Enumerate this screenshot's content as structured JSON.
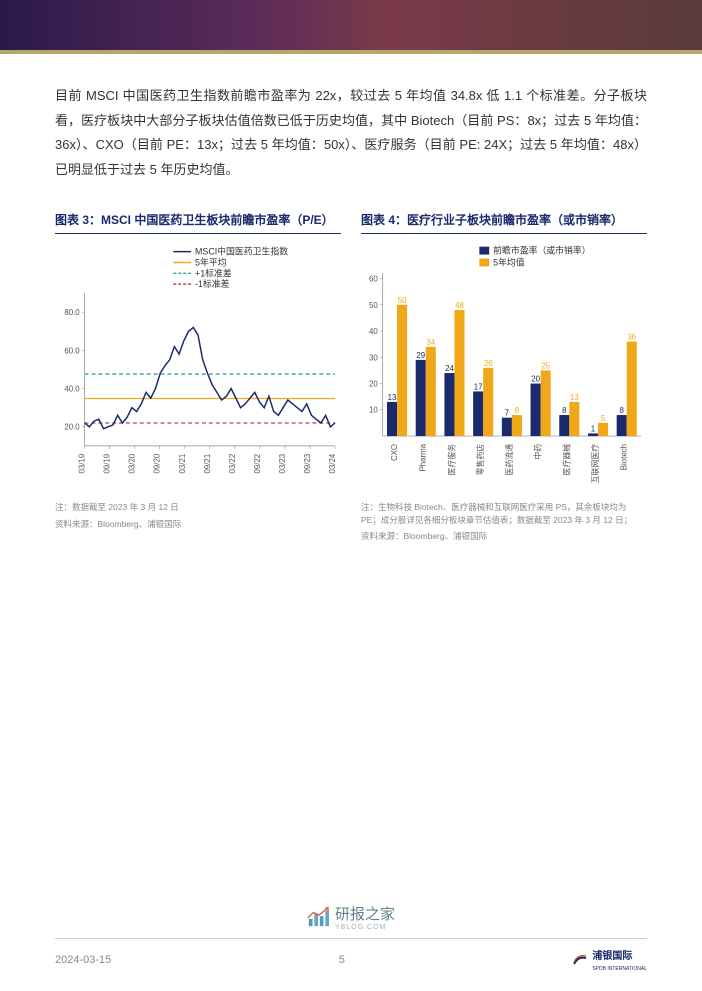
{
  "body_text": "目前 MSCI 中国医药卫生指数前瞻市盈率为 22x，较过去 5 年均值 34.8x 低 1.1 个标准差。分子板块看，医疗板块中大部分子板块估值倍数已低于历史均值，其中 Biotech（目前 PS：8x；过去 5 年均值：36x）、CXO（目前 PE：13x；过去 5 年均值：50x）、医疗服务（目前 PE: 24X；过去 5 年均值：48x）已明显低于过去 5 年历史均值。",
  "chart3": {
    "title": "图表 3：MSCI 中国医药卫生板块前瞻市盈率（P/E）",
    "type": "line",
    "legend": [
      "MSCI中国医药卫生指数",
      "5年平均",
      "+1标准差",
      "-1标准差"
    ],
    "legend_colors": [
      "#1a2a6c",
      "#f0a818",
      "#2aa89a",
      "#b54a4a"
    ],
    "legend_dashes": [
      "solid",
      "solid",
      "dashed",
      "dashed"
    ],
    "x_labels": [
      "03/19",
      "09/19",
      "03/20",
      "09/20",
      "03/21",
      "09/21",
      "03/22",
      "09/22",
      "03/23",
      "09/23",
      "03/24"
    ],
    "y_ticks": [
      20.0,
      40.0,
      60.0,
      80.0
    ],
    "ylim": [
      10,
      90
    ],
    "mean": 34.8,
    "plus1sd": 47.6,
    "minus1sd": 22.0,
    "line_width": 1.5,
    "series": [
      22,
      20,
      23,
      24,
      19,
      20,
      21,
      26,
      22,
      25,
      30,
      28,
      32,
      38,
      35,
      40,
      48,
      52,
      55,
      62,
      58,
      65,
      70,
      72,
      68,
      55,
      48,
      42,
      38,
      34,
      36,
      40,
      35,
      30,
      32,
      35,
      38,
      33,
      30,
      36,
      28,
      26,
      30,
      34,
      32,
      30,
      28,
      32,
      26,
      24,
      22,
      26,
      20,
      22
    ],
    "note": "注：数据截至 2023 年 3 月 12 日",
    "source": "资料来源：Bloomberg、浦银国际",
    "font_size_axis": 8,
    "font_size_legend": 9,
    "colors": {
      "bg": "#ffffff",
      "axis": "#888888"
    }
  },
  "chart4": {
    "title": "图表 4：医疗行业子板块前瞻市盈率（或市销率）",
    "type": "bar",
    "legend": [
      "前瞻市盈率（或市销率）",
      "5年均值"
    ],
    "legend_colors": [
      "#1a2a6c",
      "#f0a818"
    ],
    "categories": [
      "CXO",
      "Pharma",
      "医疗服务",
      "零售药店",
      "医药流通",
      "中药",
      "医疗器械",
      "互联网医疗",
      "Biotech"
    ],
    "current": [
      13,
      29,
      24,
      17,
      7,
      20,
      8,
      1,
      8
    ],
    "avg5y": [
      50,
      34,
      48,
      26,
      8,
      25,
      13,
      5,
      36
    ],
    "y_ticks": [
      10,
      20,
      30,
      40,
      50,
      60
    ],
    "ylim": [
      0,
      62
    ],
    "bar_width": 0.35,
    "font_size_axis": 8,
    "font_size_legend": 9,
    "font_size_label": 8,
    "label_color_current": "#1a2a6c",
    "label_color_avg": "#f0a818",
    "note1": "注：生物科技 Biotech、医疗器械和互联网医疗采用 PS，其余板块均为 PE；成分股详见各细分板块章节估值表；数据截至 2023 年 3 月 12 日；",
    "source": "资料来源：Bloomberg、浦银国际"
  },
  "footer": {
    "date": "2024-03-15",
    "page": "5",
    "brand": "浦银国际",
    "brand_sub": "SPDB INTERNATIONAL"
  },
  "watermark": {
    "text": "研报之家",
    "sub": "YBLOG.COM"
  }
}
